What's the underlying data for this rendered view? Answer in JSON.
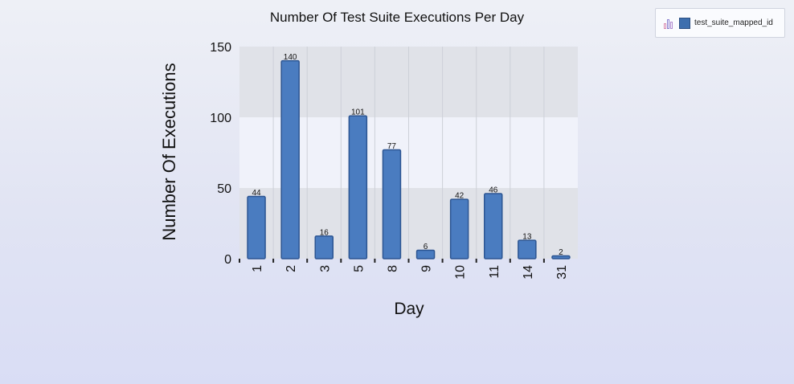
{
  "chart_data": {
    "type": "bar",
    "title": "Number Of Test Suite Executions Per Day",
    "xlabel": "Day",
    "ylabel": "Number Of Executions",
    "categories": [
      "1",
      "2",
      "3",
      "5",
      "8",
      "9",
      "10",
      "11",
      "14",
      "31"
    ],
    "series": [
      {
        "name": "test_suite_mapped_id",
        "values": [
          44,
          140,
          16,
          101,
          77,
          6,
          42,
          46,
          13,
          2
        ]
      }
    ],
    "data_labels": [
      "44",
      "140",
      "16",
      "101",
      "77",
      "6",
      "42",
      "46",
      "13",
      "2"
    ],
    "ylim": [
      0,
      150
    ],
    "yticks": [
      "0",
      "50",
      "100",
      "150"
    ],
    "grid": true,
    "legend_position": "top-right",
    "colors": {
      "bar": "#4a7cc0",
      "bar_edge": "#2c5592",
      "band_dark": "#e0e2e8",
      "band_light": "#f0f2fa"
    }
  },
  "legend": {
    "icon": "bar-chart-icon",
    "label": "test_suite_mapped_id"
  }
}
